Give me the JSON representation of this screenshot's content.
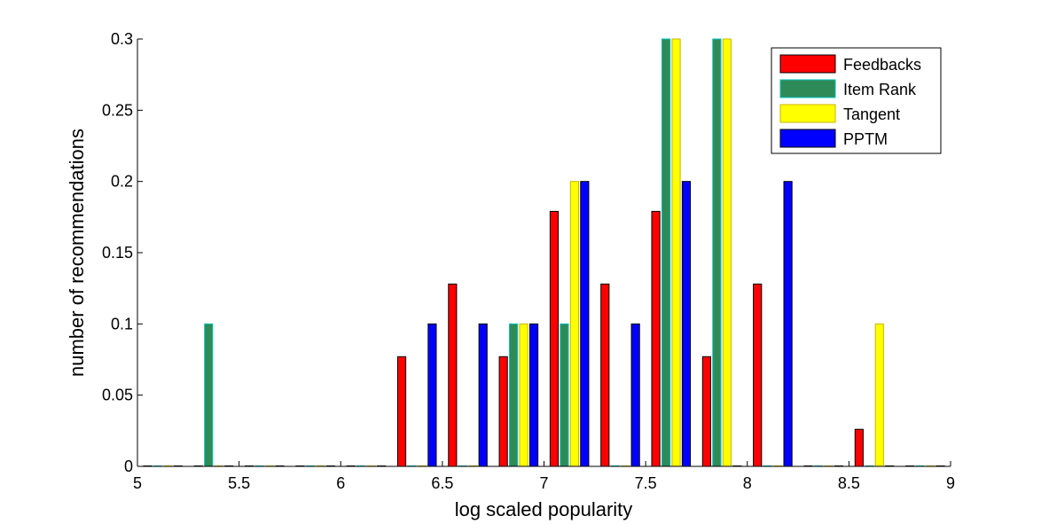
{
  "chart_data": {
    "type": "bar",
    "title": "",
    "xlabel": "log scaled popularity",
    "ylabel": "number of recommendations",
    "xlim": [
      5,
      9
    ],
    "ylim": [
      0,
      0.3
    ],
    "xticks": [
      "5",
      "5.5",
      "6",
      "6.5",
      "7",
      "7.5",
      "8",
      "8.5",
      "9"
    ],
    "yticks": [
      "0",
      "0.05",
      "0.1",
      "0.15",
      "0.2",
      "0.25",
      "0.3"
    ],
    "bin_centers": [
      5.125,
      5.375,
      5.625,
      5.875,
      6.125,
      6.375,
      6.625,
      6.875,
      7.125,
      7.375,
      7.625,
      7.875,
      8.125,
      8.375,
      8.625,
      8.875
    ],
    "bar_width": 0.04,
    "offsets": [
      -0.075,
      -0.025,
      0.025,
      0.075
    ],
    "legend_position": "top-right",
    "series": [
      {
        "name": "Feedbacks",
        "color": "#ff0000",
        "edge": "#000000",
        "values": [
          0,
          0,
          0,
          0,
          0,
          0.077,
          0.128,
          0.077,
          0.179,
          0.128,
          0.179,
          0.077,
          0.128,
          0,
          0.026,
          0
        ]
      },
      {
        "name": "Item Rank",
        "color": "#2e8b57",
        "edge": "#00bfbf",
        "values": [
          0,
          0.1,
          0,
          0,
          0,
          0,
          0,
          0.1,
          0.1,
          0,
          0.3,
          0.3,
          0,
          0,
          0,
          0
        ]
      },
      {
        "name": "Tangent",
        "color": "#ffff00",
        "edge": "#c8b400",
        "values": [
          0,
          0,
          0,
          0,
          0,
          0,
          0,
          0.1,
          0.2,
          0,
          0.3,
          0.3,
          0,
          0,
          0.1,
          0
        ]
      },
      {
        "name": "PPTM",
        "color": "#0000ff",
        "edge": "#000000",
        "values": [
          0,
          0,
          0,
          0,
          0,
          0.1,
          0.1,
          0.1,
          0.2,
          0.1,
          0.2,
          0,
          0.2,
          0,
          0,
          0
        ]
      }
    ]
  }
}
